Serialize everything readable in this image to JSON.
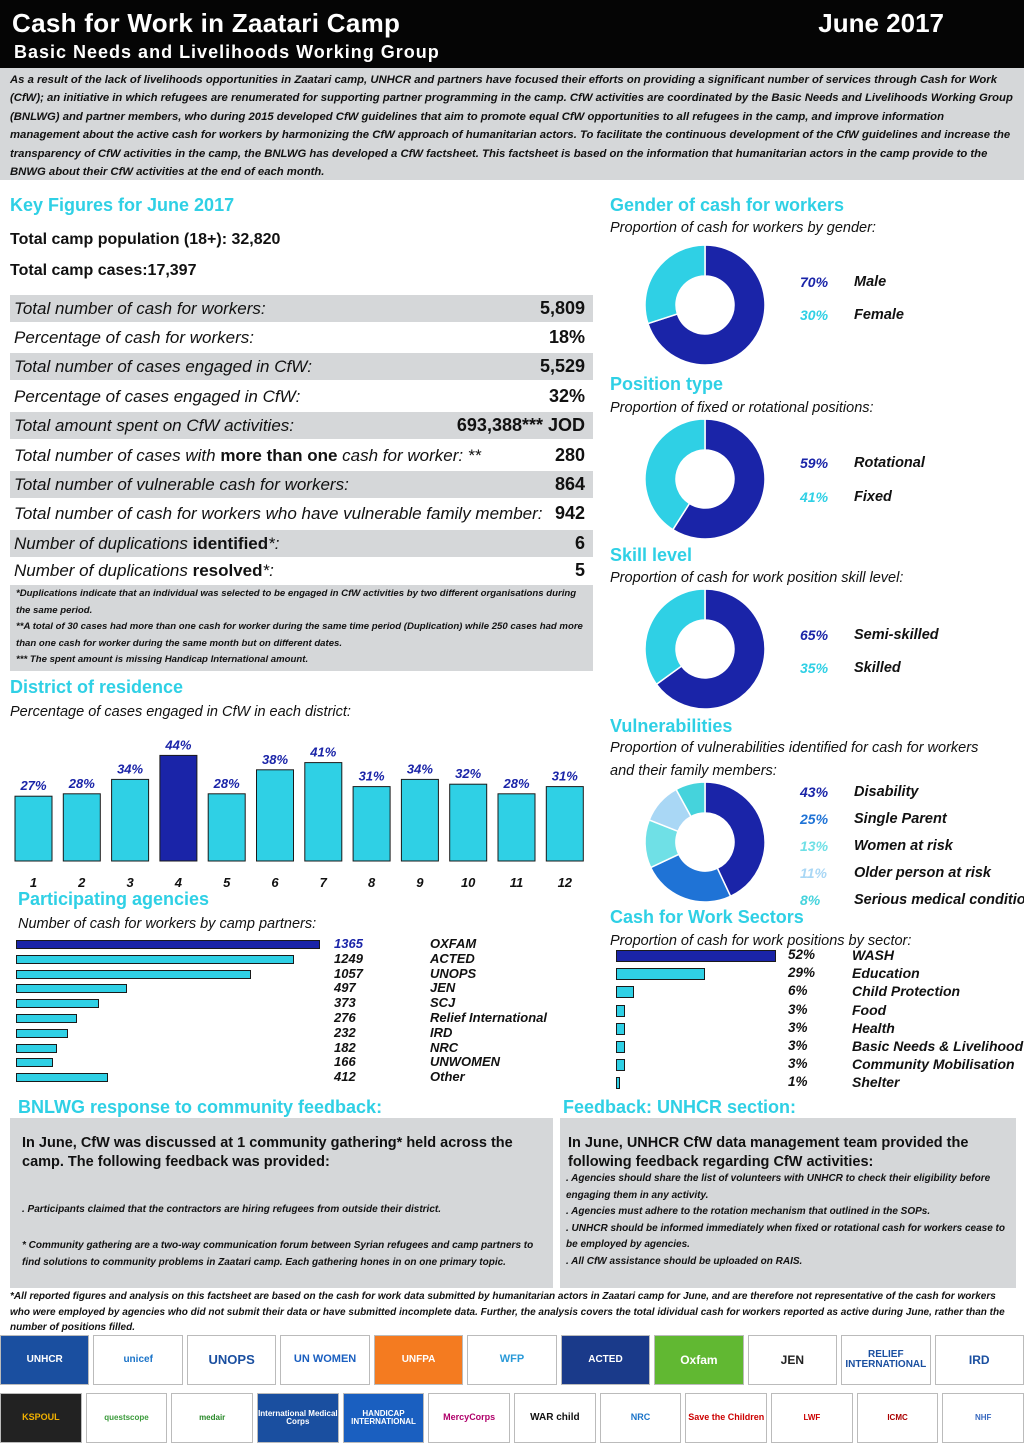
{
  "header": {
    "title": "Cash for Work in Zaatari Camp",
    "date": "June 2017",
    "subtitle": "Basic Needs and Livelihoods Working Group"
  },
  "intro": "As a result of the lack of livelihoods opportunities in Zaatari camp, UNHCR and partners have focused their efforts on providing a significant number of services through Cash for Work (CfW); an initiative in which refugees are renumerated for supporting partner programming in the camp. CfW activities are coordinated by the Basic Needs and Livelihoods Working Group (BNLWG) and partner members, who during 2015 developed CfW guidelines that aim to promote equal CfW opportunities to all refugees in the camp, and improve information management about the active cash for workers by harmonizing the CfW approach of humanitarian actors. To facilitate the continuous development of the CfW guidelines and increase the transparency of CfW activities in the camp, the BNLWG has developed a CfW factsheet. This factsheet is based on the information that humanitarian actors in the camp provide to the BNWG about their CfW activities at the end of each month.",
  "key_figures": {
    "title": "Key Figures for June 2017",
    "population": "Total camp population (18+): 32,820",
    "cases": "Total camp cases:17,397",
    "rows": [
      {
        "pre": "Total number of cash for workers:",
        "bold": "",
        "post": "",
        "value": "5,809"
      },
      {
        "pre": "Percentage of cash for workers:",
        "bold": "",
        "post": "",
        "value": "18%"
      },
      {
        "pre": "Total number of cases engaged in CfW:",
        "bold": "",
        "post": "",
        "value": "5,529"
      },
      {
        "pre": "Percentage of cases engaged in CfW:",
        "bold": "",
        "post": "",
        "value": "32%"
      },
      {
        "pre": "Total amount spent on CfW activities:",
        "bold": "",
        "post": "",
        "value": "693,388*** JOD"
      },
      {
        "pre": "Total number of cases with ",
        "bold": "more than one",
        "post": " cash for worker: **",
        "value": "280"
      },
      {
        "pre": "Total number of vulnerable cash for workers:",
        "bold": "",
        "post": "",
        "value": "864"
      },
      {
        "pre": "Total number of cash for workers who have vulnerable family member:",
        "bold": "",
        "post": "",
        "value": "942"
      },
      {
        "pre": "Number of duplications ",
        "bold": "identified",
        "post": "*:",
        "value": "6"
      },
      {
        "pre": "Number of duplications ",
        "bold": "resolved",
        "post": "*:",
        "value": "5"
      }
    ],
    "notes": [
      "*Duplications indicate that an individual was selected to be engaged in CfW activities by two different organisations during the same period.",
      "**A total of 30 cases had more than one cash for worker during the same time period (Duplication) while 250 cases had more than one cash for worker during the same month but on different dates.",
      "*** The spent amount is missing Handicap International amount."
    ]
  },
  "district": {
    "title": "District of residence",
    "subtitle": "Percentage of cases engaged in CfW in each district:"
  },
  "agencies": {
    "title": "Participating agencies",
    "subtitle": "Number of cash for workers by camp partners:"
  },
  "gender": {
    "title": "Gender of cash for workers",
    "subtitle": "Proportion of cash for workers by gender:",
    "items": [
      {
        "pct": "70%",
        "label": "Male"
      },
      {
        "pct": "30%",
        "label": "Female"
      }
    ]
  },
  "position": {
    "title": "Position type",
    "subtitle": "Proportion of fixed or rotational positions:",
    "items": [
      {
        "pct": "59%",
        "label": "Rotational"
      },
      {
        "pct": "41%",
        "label": "Fixed"
      }
    ]
  },
  "skill": {
    "title": "Skill level",
    "subtitle": "Proportion of cash for work position skill level:",
    "items": [
      {
        "pct": "65%",
        "label": "Semi-skilled"
      },
      {
        "pct": "35%",
        "label": "Skilled"
      }
    ]
  },
  "vulnerabilities": {
    "title": "Vulnerabilities",
    "subtitle1": "Proportion of vulnerabilities identified for cash for workers",
    "subtitle2": "and their family members:",
    "items": [
      {
        "pct": "43%",
        "label": "Disability"
      },
      {
        "pct": "25%",
        "label": "Single Parent"
      },
      {
        "pct": "13%",
        "label": "Women at risk"
      },
      {
        "pct": "11%",
        "label": "Older person at risk"
      },
      {
        "pct": "8%",
        "label": "Serious medical condition"
      }
    ]
  },
  "sectors": {
    "title": "Cash for Work Sectors",
    "subtitle": "Proportion of cash for work positions by sector:"
  },
  "bnlwg_feedback": {
    "title": "BNLWG response to community feedback:",
    "intro": "In June, CfW was discussed at 1 community gathering* held across the camp. The following feedback was provided:",
    "point": ". Participants claimed that the contractors are hiring refugees from outside their district.",
    "note": "* Community gathering are a two-way communication forum between Syrian refugees and camp partners to find solutions to community problems in Zaatari camp. Each gathering hones in on one primary topic."
  },
  "unhcr_feedback": {
    "title": "Feedback: UNHCR section:",
    "intro": "In June, UNHCR CfW data management team provided the following feedback regarding CfW activities:",
    "points": [
      ". Agencies should share the list of volunteers with UNHCR to check their eligibility before engaging them in any activity.",
      ". Agencies must adhere to the rotation mechanism that outlined in the SOPs.",
      ". UNHCR should be informed immediately when fixed or rotational cash for workers cease to be employed by agencies.",
      ". All CfW assistance should be uploaded on RAIS."
    ]
  },
  "footer_note": "*All reported figures and analysis on this factsheet are based on the cash for work data submitted by humanitarian actors in Zaatari camp for June, and are therefore not representative of the cash for workers who were employed by agencies who did not submit their data or have submitted incomplete data. Further, the analysis covers the total idividual cash for workers reported as active during June, rather than the number of positions filled.",
  "logos_row1": [
    "UNHCR",
    "unicef",
    "UNOPS",
    "UN WOMEN",
    "UNFPA",
    "WFP",
    "ACTED",
    "Oxfam",
    "JEN",
    "RELIEF INTERNATIONAL",
    "IRD"
  ],
  "logos_row2": [
    "KSPOUL",
    "questscope",
    "medair",
    "International Medical Corps",
    "HANDICAP INTERNATIONAL",
    "MercyCorps",
    "WAR child",
    "NRC",
    "Save the Children",
    "LWF",
    "ICMC",
    "NHF"
  ],
  "colors": {
    "accent": "#2fd0e5",
    "dark_blue": "#1a24a8",
    "gray": "#d5d7d9",
    "header": "#050505"
  },
  "chart_data": [
    {
      "type": "bar",
      "title": "District of residence",
      "categories": [
        "1",
        "2",
        "3",
        "4",
        "5",
        "6",
        "7",
        "8",
        "9",
        "10",
        "11",
        "12"
      ],
      "values": [
        27,
        28,
        34,
        44,
        28,
        38,
        41,
        31,
        34,
        32,
        28,
        31
      ],
      "labels": [
        "27%",
        "28%",
        "34%",
        "44%",
        "28%",
        "38%",
        "41%",
        "31%",
        "34%",
        "32%",
        "28%",
        "31%"
      ],
      "highlight": "4"
    },
    {
      "type": "bar",
      "orientation": "horizontal",
      "title": "Participating agencies",
      "categories": [
        "OXFAM",
        "ACTED",
        "UNOPS",
        "JEN",
        "SCJ",
        "Relief International",
        "IRD",
        "NRC",
        "UNWOMEN",
        "Other"
      ],
      "values": [
        1365,
        1249,
        1057,
        497,
        373,
        276,
        232,
        182,
        166,
        412
      ],
      "highlight": "OXFAM"
    },
    {
      "type": "pie",
      "title": "Gender of cash for workers",
      "categories": [
        "Male",
        "Female"
      ],
      "values": [
        70,
        30
      ],
      "colors": [
        "#1a24a8",
        "#2fd0e5"
      ]
    },
    {
      "type": "pie",
      "title": "Position type",
      "categories": [
        "Rotational",
        "Fixed"
      ],
      "values": [
        59,
        41
      ],
      "colors": [
        "#1a24a8",
        "#2fd0e5"
      ]
    },
    {
      "type": "pie",
      "title": "Skill level",
      "categories": [
        "Semi-skilled",
        "Skilled"
      ],
      "values": [
        65,
        35
      ],
      "colors": [
        "#1a24a8",
        "#2fd0e5"
      ]
    },
    {
      "type": "pie",
      "title": "Vulnerabilities",
      "categories": [
        "Disability",
        "Single Parent",
        "Women at risk",
        "Older person at risk",
        "Serious medical condition"
      ],
      "values": [
        43,
        25,
        13,
        11,
        8
      ],
      "colors": [
        "#1a24a8",
        "#1f73d6",
        "#6fe0e6",
        "#a9d7f5",
        "#45d3dc"
      ]
    },
    {
      "type": "bar",
      "orientation": "horizontal",
      "title": "Cash for Work Sectors",
      "categories": [
        "WASH",
        "Education",
        "Child Protection",
        "Food",
        "Health",
        "Basic Needs & Livelihood",
        "Community Mobilisation",
        "Shelter"
      ],
      "values": [
        52,
        29,
        6,
        3,
        3,
        3,
        3,
        1
      ],
      "labels": [
        "52%",
        "29%",
        "6%",
        "3%",
        "3%",
        "3%",
        "3%",
        "1%"
      ],
      "highlight": "WASH"
    }
  ]
}
